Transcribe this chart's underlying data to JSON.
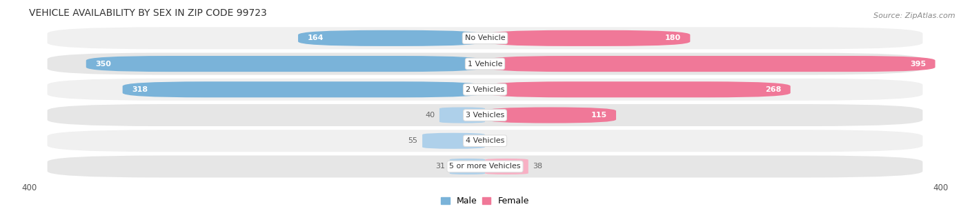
{
  "title": "VEHICLE AVAILABILITY BY SEX IN ZIP CODE 99723",
  "source": "Source: ZipAtlas.com",
  "categories": [
    "No Vehicle",
    "1 Vehicle",
    "2 Vehicles",
    "3 Vehicles",
    "4 Vehicles",
    "5 or more Vehicles"
  ],
  "male_values": [
    164,
    350,
    318,
    40,
    55,
    31
  ],
  "female_values": [
    180,
    395,
    268,
    115,
    0,
    38
  ],
  "male_color": "#7ab3d9",
  "female_color": "#f07898",
  "male_color_light": "#aed0ea",
  "female_color_light": "#f8b0c4",
  "row_bg_odd": "#f0f0f0",
  "row_bg_even": "#e6e6e6",
  "max_val": 400,
  "legend_male": "Male",
  "legend_female": "Female",
  "label_color_inside": "#ffffff",
  "label_color_outside": "#666666",
  "title_fontsize": 10,
  "source_fontsize": 8,
  "bar_height": 0.62,
  "category_label_fontsize": 8,
  "value_label_fontsize": 8,
  "inside_threshold": 60
}
